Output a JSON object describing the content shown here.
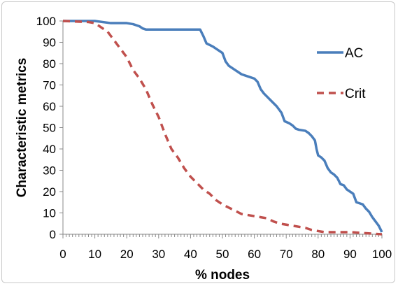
{
  "chart_data": {
    "type": "line",
    "title": "",
    "xlabel": "% nodes",
    "ylabel": "Characteristic metrics",
    "xlim": [
      0,
      100
    ],
    "ylim": [
      0,
      100
    ],
    "xticks": [
      0,
      10,
      20,
      30,
      40,
      50,
      60,
      70,
      80,
      90,
      100
    ],
    "yticks": [
      0,
      10,
      20,
      30,
      40,
      50,
      60,
      70,
      80,
      90,
      100
    ],
    "grid": false,
    "legend_position": "right",
    "series": [
      {
        "name": "AC",
        "color": "#4a7ebb",
        "style": "solid",
        "points": [
          [
            0,
            100
          ],
          [
            10,
            100
          ],
          [
            15,
            99
          ],
          [
            20,
            99
          ],
          [
            22,
            98.5
          ],
          [
            24,
            97.5
          ],
          [
            25,
            96.5
          ],
          [
            26,
            96
          ],
          [
            30,
            96
          ],
          [
            35,
            96
          ],
          [
            40,
            96
          ],
          [
            43,
            96
          ],
          [
            44,
            93
          ],
          [
            45,
            89.5
          ],
          [
            47,
            88
          ],
          [
            49,
            86
          ],
          [
            50,
            85
          ],
          [
            51,
            81
          ],
          [
            52,
            79
          ],
          [
            54,
            77
          ],
          [
            56,
            75
          ],
          [
            58,
            74
          ],
          [
            60,
            73
          ],
          [
            61,
            71.5
          ],
          [
            62,
            68
          ],
          [
            63,
            66
          ],
          [
            65,
            63
          ],
          [
            67,
            60
          ],
          [
            68.5,
            57
          ],
          [
            69.5,
            53
          ],
          [
            71,
            52
          ],
          [
            72,
            51
          ],
          [
            73,
            49.5
          ],
          [
            74,
            49
          ],
          [
            76,
            48.5
          ],
          [
            77,
            47.5
          ],
          [
            78,
            46
          ],
          [
            79,
            44
          ],
          [
            79.5,
            40
          ],
          [
            80,
            37
          ],
          [
            81,
            36
          ],
          [
            82,
            34.5
          ],
          [
            83,
            31
          ],
          [
            84,
            29
          ],
          [
            85,
            28
          ],
          [
            86,
            26.5
          ],
          [
            87,
            23.5
          ],
          [
            88,
            23
          ],
          [
            89,
            21
          ],
          [
            90,
            20
          ],
          [
            91,
            19
          ],
          [
            92,
            15
          ],
          [
            93,
            14.5
          ],
          [
            94,
            14
          ],
          [
            95,
            12
          ],
          [
            96,
            10.5
          ],
          [
            97,
            8
          ],
          [
            98,
            6
          ],
          [
            99,
            4
          ],
          [
            100,
            1
          ]
        ]
      },
      {
        "name": "Crit",
        "color": "#c0504d",
        "style": "dashed",
        "points": [
          [
            0,
            100
          ],
          [
            8,
            99.5
          ],
          [
            10,
            99
          ],
          [
            12,
            97
          ],
          [
            14,
            95
          ],
          [
            16,
            91
          ],
          [
            18,
            87
          ],
          [
            20,
            83
          ],
          [
            22,
            77
          ],
          [
            24,
            73
          ],
          [
            26,
            68
          ],
          [
            28,
            61
          ],
          [
            30,
            55
          ],
          [
            32,
            47
          ],
          [
            34,
            40
          ],
          [
            36,
            36
          ],
          [
            38,
            31
          ],
          [
            40,
            27
          ],
          [
            42,
            24
          ],
          [
            44,
            21
          ],
          [
            46,
            19
          ],
          [
            48,
            16
          ],
          [
            50,
            14
          ],
          [
            52,
            12.5
          ],
          [
            54,
            11
          ],
          [
            56,
            9.5
          ],
          [
            58,
            9
          ],
          [
            60,
            8.5
          ],
          [
            62,
            8
          ],
          [
            64,
            7.5
          ],
          [
            66,
            6
          ],
          [
            68,
            5
          ],
          [
            70,
            4.5
          ],
          [
            72,
            4
          ],
          [
            74,
            3.5
          ],
          [
            76,
            3
          ],
          [
            78,
            2
          ],
          [
            80,
            1.5
          ],
          [
            82,
            1
          ],
          [
            85,
            1
          ],
          [
            90,
            1
          ],
          [
            95,
            0.5
          ],
          [
            100,
            0
          ]
        ]
      }
    ]
  }
}
